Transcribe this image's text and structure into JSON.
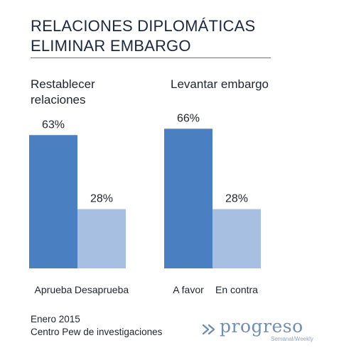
{
  "header": {
    "title_line1": "RELACIONES DIPLOMÁTICAS",
    "title_line2": "ELIMINAR EMBARGO"
  },
  "panels": [
    {
      "title_line1": "Restablecer",
      "title_line2": "relaciones"
    },
    {
      "title_line1": "Levantar embargo"
    }
  ],
  "chart_data": [
    {
      "type": "bar",
      "title": "Restablecer relaciones",
      "categories": [
        "Aprueba",
        "Desaprueba"
      ],
      "values": [
        63,
        28
      ],
      "value_labels": [
        "63%",
        "28%"
      ],
      "ylim": [
        0,
        100
      ],
      "xlabel": "",
      "ylabel": "",
      "grid": false,
      "colors": [
        "#4a7fc1",
        "#a7bfe1"
      ]
    },
    {
      "type": "bar",
      "title": "Levantar embargo",
      "categories": [
        "A favor",
        "En contra"
      ],
      "values": [
        66,
        28
      ],
      "value_labels": [
        "66%",
        "28%"
      ],
      "ylim": [
        0,
        100
      ],
      "xlabel": "",
      "ylabel": "",
      "grid": false,
      "colors": [
        "#4a7fc1",
        "#a7bfe1"
      ]
    }
  ],
  "footer": {
    "source_line1": "Enero 2015",
    "source_line2": "Centro Pew de investigaciones"
  },
  "logo": {
    "word": "progreso",
    "sub": "Semanal/Weekly",
    "icon": "double-chevron-icon",
    "color": "#6f8fb3"
  },
  "colors": {
    "title": "#1c2840",
    "rule": "#4a78b4",
    "bar_primary": "#4a7fc1",
    "bar_secondary": "#a7bfe1"
  }
}
